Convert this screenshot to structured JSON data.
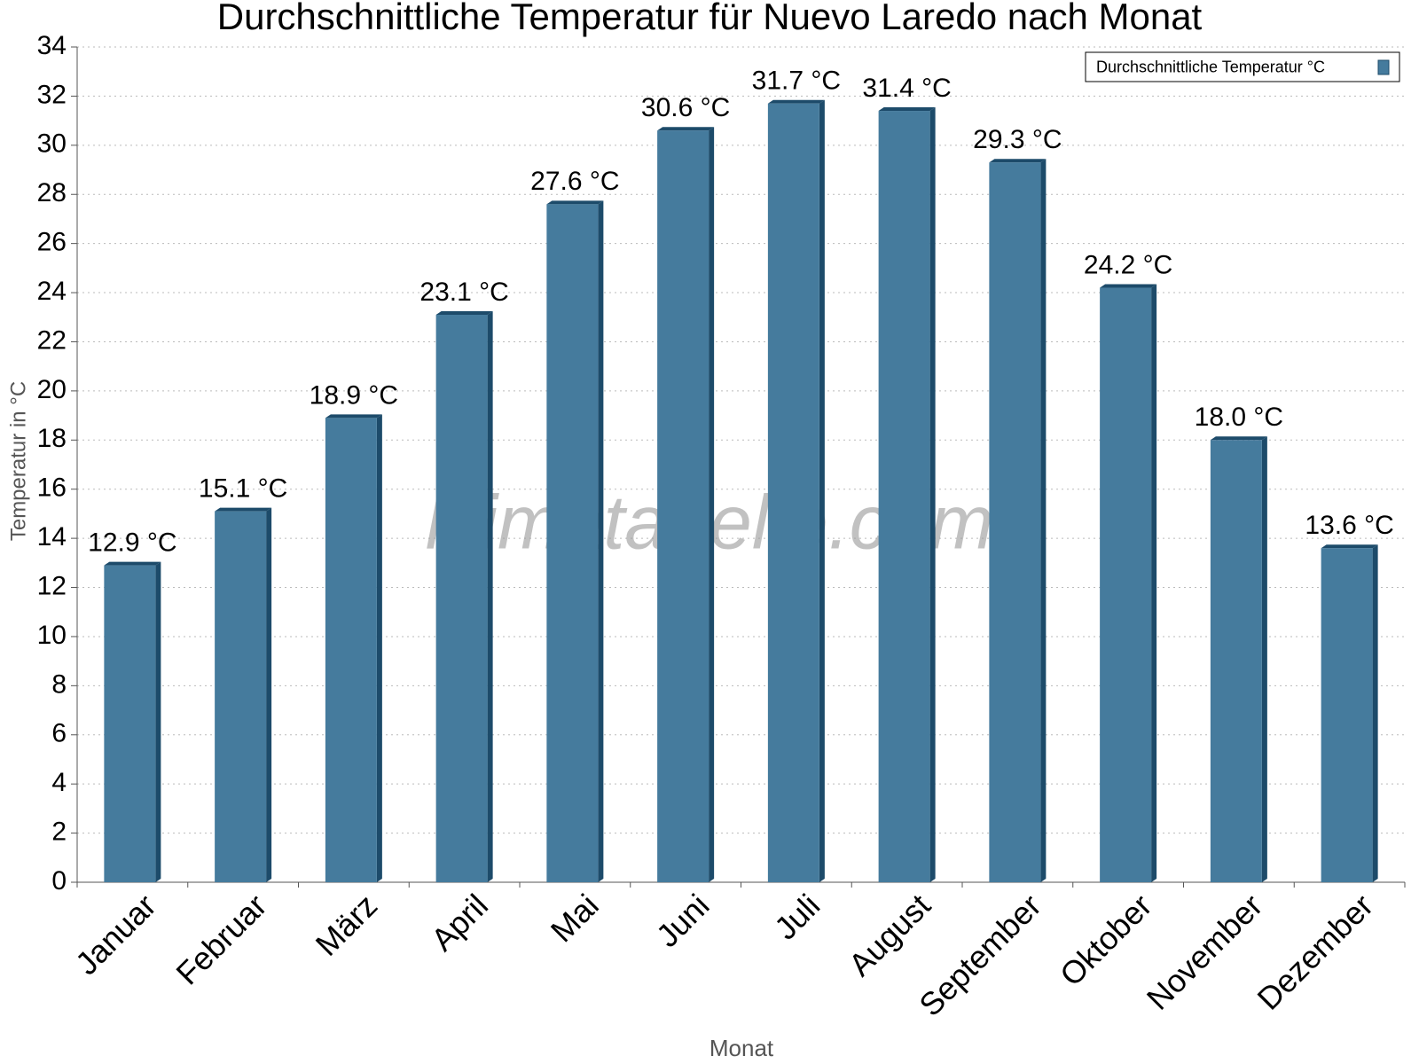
{
  "chart_data": {
    "type": "bar",
    "title": "Durchschnittliche Temperatur für Nuevo Laredo nach Monat",
    "watermark": "klimatabelle.com",
    "x_label": "Monat",
    "y_label": "Temperatur in °C",
    "categories": [
      "Januar",
      "Februar",
      "März",
      "April",
      "Mai",
      "Juni",
      "Juli",
      "August",
      "September",
      "Oktober",
      "November",
      "Dezember"
    ],
    "series": [
      {
        "name": "Durchschnittliche Temperatur °C",
        "color": "#457b9d",
        "values": [
          12.9,
          15.1,
          18.9,
          23.1,
          27.6,
          30.6,
          31.7,
          31.4,
          29.3,
          24.2,
          18.0,
          13.6
        ],
        "value_labels": [
          "12.9 °C",
          "15.1 °C",
          "18.9 °C",
          "23.1 °C",
          "27.6 °C",
          "30.6 °C",
          "31.7 °C",
          "31.4 °C",
          "29.3 °C",
          "24.2 °C",
          "18.0 °C",
          "13.6 °C"
        ]
      }
    ],
    "ylim": [
      0,
      34
    ],
    "yticks": [
      0,
      2,
      4,
      6,
      8,
      10,
      12,
      14,
      16,
      18,
      20,
      22,
      24,
      26,
      28,
      30,
      32,
      34
    ],
    "grid": true,
    "legend": "top-right"
  }
}
